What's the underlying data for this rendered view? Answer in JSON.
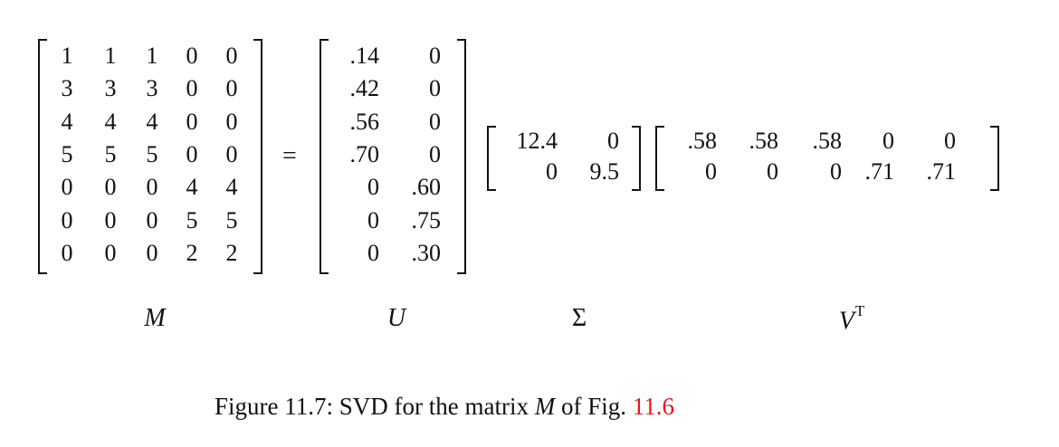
{
  "matrices": {
    "M": {
      "label": "M",
      "rows": [
        [
          "1",
          "1",
          "1",
          "0",
          "0"
        ],
        [
          "3",
          "3",
          "3",
          "0",
          "0"
        ],
        [
          "4",
          "4",
          "4",
          "0",
          "0"
        ],
        [
          "5",
          "5",
          "5",
          "0",
          "0"
        ],
        [
          "0",
          "0",
          "0",
          "4",
          "4"
        ],
        [
          "0",
          "0",
          "0",
          "5",
          "5"
        ],
        [
          "0",
          "0",
          "0",
          "2",
          "2"
        ]
      ]
    },
    "U": {
      "label": "U",
      "rows": [
        [
          ".14",
          "0"
        ],
        [
          ".42",
          "0"
        ],
        [
          ".56",
          "0"
        ],
        [
          ".70",
          "0"
        ],
        [
          "0",
          ".60"
        ],
        [
          "0",
          ".75"
        ],
        [
          "0",
          ".30"
        ]
      ]
    },
    "Sigma": {
      "label": "Σ",
      "rows": [
        [
          "12.4",
          "0"
        ],
        [
          "0",
          "9.5"
        ]
      ]
    },
    "VT": {
      "label": "V",
      "label_sup": "T",
      "rows": [
        [
          ".58",
          ".58",
          ".58",
          "0",
          "0"
        ],
        [
          "0",
          "0",
          "0",
          ".71",
          ".71"
        ]
      ]
    }
  },
  "equals": "=",
  "caption": {
    "prefix": "Figure 11.7: SVD for the matrix ",
    "math": "M",
    "middle": " of Fig. ",
    "ref": "11.6"
  }
}
